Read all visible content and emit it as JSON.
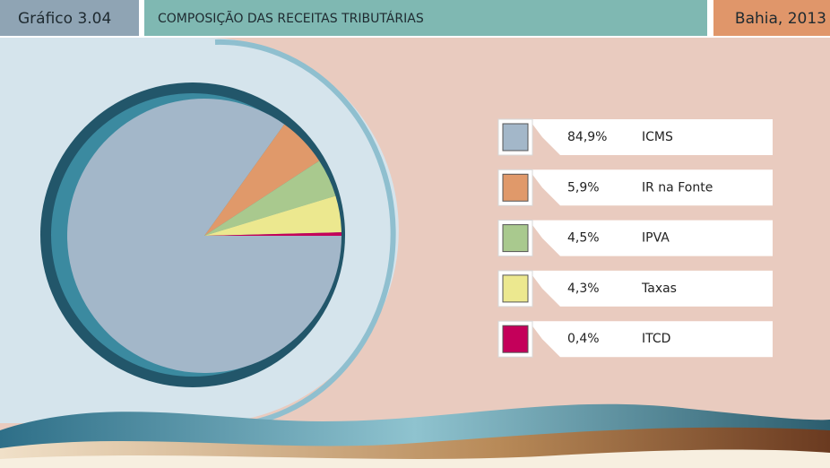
{
  "chart_data": {
    "type": "pie",
    "chart_number": "Gráfico 3.04",
    "title": "COMPOSIÇÃO DAS RECEITAS TRIBUTÁRIAS",
    "subtitle": "Bahia, 2013",
    "categories": [
      "ICMS",
      "IR na Fonte",
      "IPVA",
      "Taxas",
      "ITCD"
    ],
    "values": [
      84.9,
      5.9,
      4.5,
      4.3,
      0.4
    ],
    "value_labels": [
      "84,9%",
      "5,9%",
      "4,5%",
      "4,3%",
      "0,4%"
    ],
    "colors": [
      "#a3b7c9",
      "#e0996a",
      "#a9c98e",
      "#ece88f",
      "#c4005a"
    ]
  }
}
